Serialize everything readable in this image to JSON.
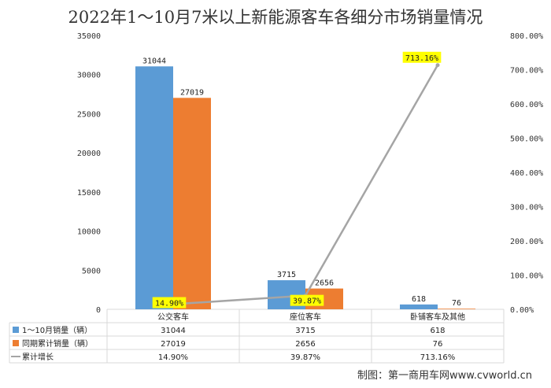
{
  "chart_data": {
    "type": "bar",
    "title": "2022年1～10月7米以上新能源客车各细分市场销量情况",
    "categories": [
      "公交客车",
      "座位客车",
      "卧铺客车及其他"
    ],
    "series": [
      {
        "name": "1～10月销量（辆）",
        "type": "bar",
        "values": [
          31044,
          3715,
          618
        ],
        "labels": [
          "31044",
          "3715",
          "618"
        ],
        "color": "#5b9bd5"
      },
      {
        "name": "同期累计销量（辆）",
        "type": "bar",
        "values": [
          27019,
          2656,
          76
        ],
        "labels": [
          "27019",
          "2656",
          "76"
        ],
        "color": "#ed7d31"
      },
      {
        "name": "累计增长",
        "type": "line",
        "axis": "right",
        "values": [
          14.9,
          39.87,
          713.16
        ],
        "labels": [
          "14.90%",
          "39.87%",
          "713.16%"
        ],
        "color": "#a5a5a5"
      }
    ],
    "y_left": {
      "ylim": [
        0,
        35000
      ],
      "ticks": [
        "0",
        "5000",
        "10000",
        "15000",
        "20000",
        "25000",
        "30000",
        "35000"
      ]
    },
    "y_right": {
      "ylim": [
        0,
        800
      ],
      "ticks": [
        "0.00%",
        "100.00%",
        "200.00%",
        "300.00%",
        "400.00%",
        "500.00%",
        "600.00%",
        "700.00%",
        "800.00%"
      ]
    },
    "grid": false,
    "legend": "data-table",
    "highlight_color": "#ffff00"
  },
  "credit": "制图：第一商用车网www.cvworld.cn"
}
